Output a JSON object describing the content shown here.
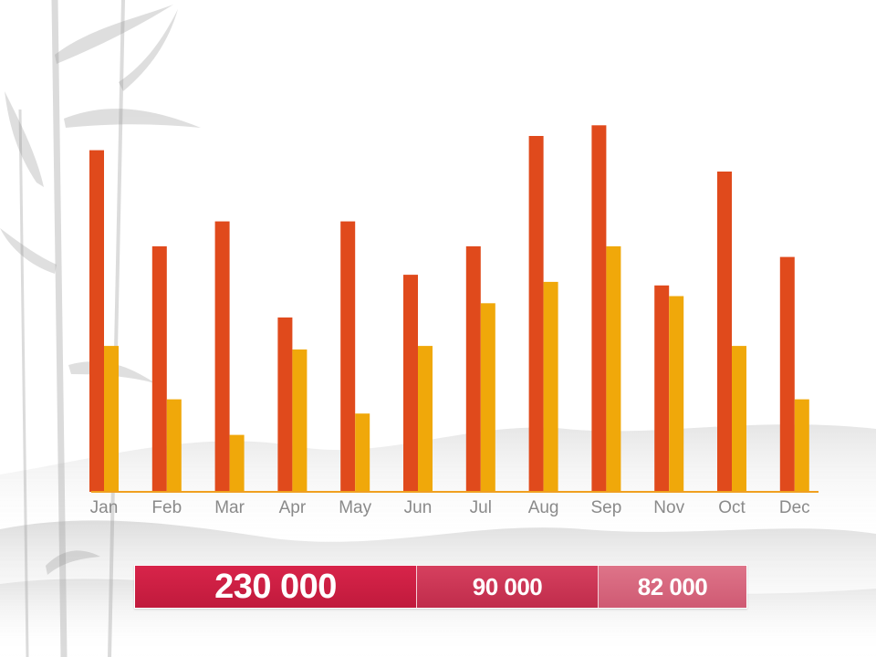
{
  "chart_data": {
    "type": "bar",
    "categories": [
      "Jan",
      "Feb",
      "Mar",
      "Apr",
      "May",
      "Jun",
      "Jul",
      "Aug",
      "Sep",
      "Nov",
      "Oct",
      "Dec"
    ],
    "series": [
      {
        "values": [
          96,
          69,
          76,
          49,
          76,
          61,
          69,
          100,
          103,
          58,
          90,
          66
        ]
      },
      {
        "values": [
          41,
          26,
          16,
          40,
          22,
          41,
          53,
          59,
          69,
          55,
          41,
          26
        ]
      }
    ],
    "ylim": [
      0,
      110
    ],
    "grid": false,
    "legend": "none",
    "colors": [
      "#e04a1c",
      "#f0a80a"
    ],
    "axis_color": "#f0a020"
  },
  "totals": [
    {
      "value": "230 000"
    },
    {
      "value": "90 000"
    },
    {
      "value": "82 000"
    }
  ]
}
